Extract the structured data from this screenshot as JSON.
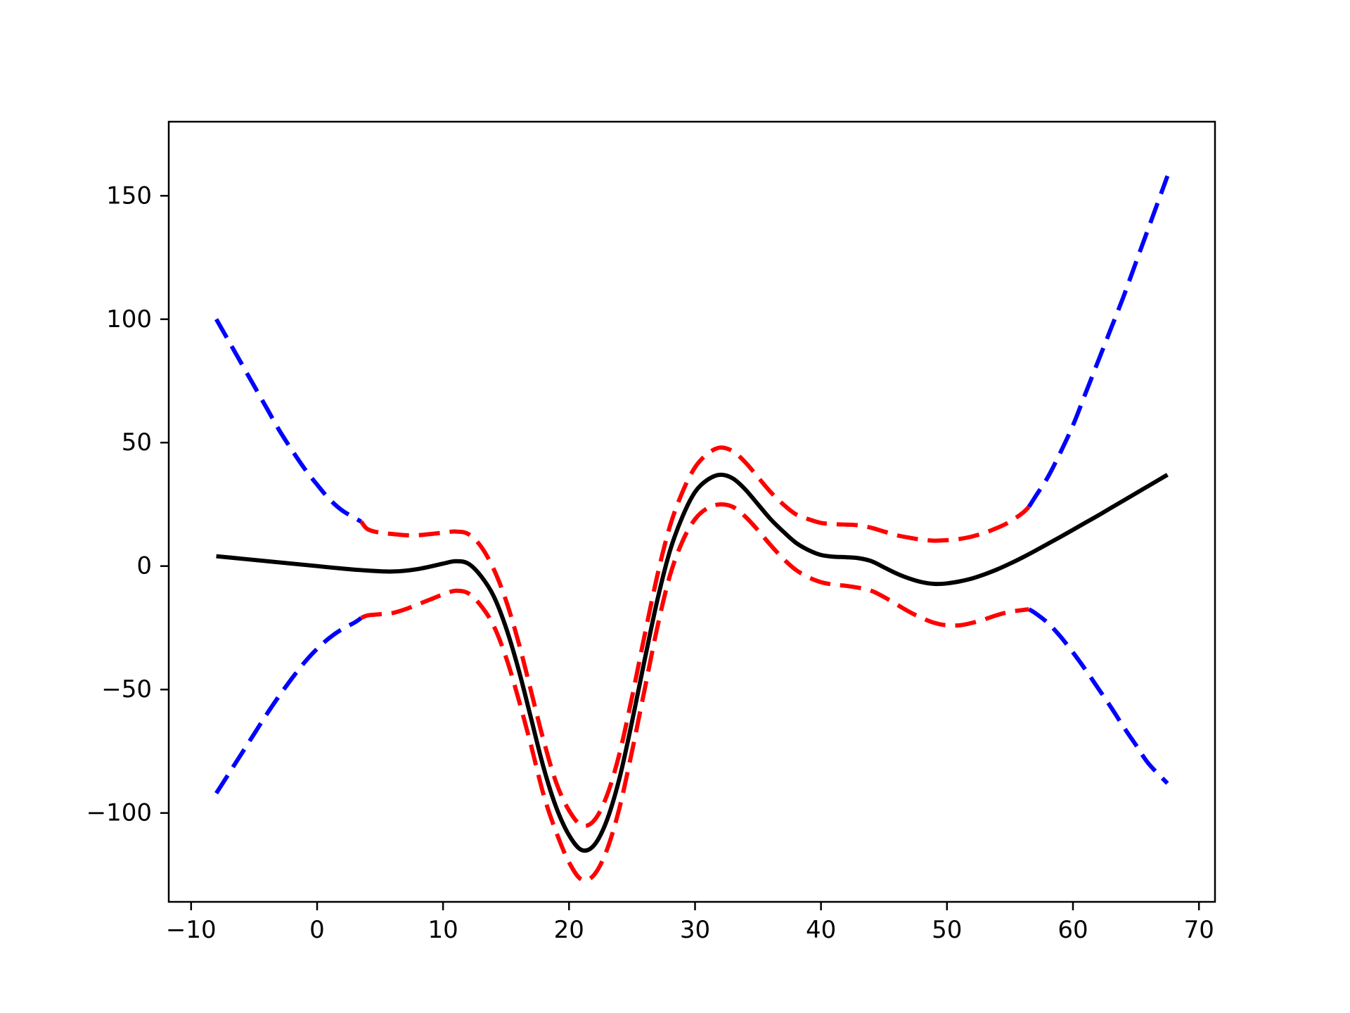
{
  "figure": {
    "background": "#ffffff",
    "axes_box_color": "#000000"
  },
  "chart_data": {
    "type": "line",
    "title": "",
    "xlabel": "",
    "ylabel": "",
    "grid": false,
    "legend": null,
    "xlim": [
      -11.775,
      71.275
    ],
    "ylim": [
      -136,
      180
    ],
    "xticks": {
      "values": [
        -10,
        0,
        10,
        20,
        30,
        40,
        50,
        60,
        70
      ],
      "labels": [
        "−10",
        "0",
        "10",
        "20",
        "30",
        "40",
        "50",
        "60",
        "70"
      ]
    },
    "yticks": {
      "values": [
        -100,
        -50,
        0,
        50,
        100,
        150
      ],
      "labels": [
        "−100",
        "−50",
        "0",
        "50",
        "100",
        "150"
      ]
    },
    "series": [
      {
        "name": "upper-confidence-band-extrapolation-left",
        "color": "#0000ff",
        "style": "dashed",
        "linewidth": 6,
        "points": [
          [
            -8,
            100
          ],
          [
            -7,
            91
          ],
          [
            -6,
            82
          ],
          [
            -5,
            73
          ],
          [
            -4,
            64
          ],
          [
            -3,
            55
          ],
          [
            -2,
            47
          ],
          [
            -1,
            39.5
          ],
          [
            0,
            33
          ],
          [
            1,
            27
          ],
          [
            2,
            22.5
          ],
          [
            3,
            19.5
          ],
          [
            3.5,
            18
          ]
        ]
      },
      {
        "name": "lower-confidence-band-extrapolation-left",
        "color": "#0000ff",
        "style": "dashed",
        "linewidth": 6,
        "points": [
          [
            -8,
            -92
          ],
          [
            -7,
            -84
          ],
          [
            -6,
            -76
          ],
          [
            -5,
            -68
          ],
          [
            -4,
            -60
          ],
          [
            -3,
            -52.5
          ],
          [
            -2,
            -45.5
          ],
          [
            -1,
            -39
          ],
          [
            0,
            -33.5
          ],
          [
            1,
            -29
          ],
          [
            2,
            -25.5
          ],
          [
            3,
            -22.8
          ],
          [
            3.5,
            -21
          ]
        ]
      },
      {
        "name": "upper-confidence-band-extrapolation-right",
        "color": "#0000ff",
        "style": "dashed",
        "linewidth": 6,
        "points": [
          [
            56.5,
            24
          ],
          [
            57,
            28
          ],
          [
            58,
            36
          ],
          [
            59,
            46
          ],
          [
            60,
            57
          ],
          [
            61,
            70
          ],
          [
            62,
            83
          ],
          [
            63,
            96
          ],
          [
            64,
            109
          ],
          [
            65,
            123
          ],
          [
            66,
            137
          ],
          [
            67.5,
            158
          ]
        ]
      },
      {
        "name": "lower-confidence-band-extrapolation-right",
        "color": "#0000ff",
        "style": "dashed",
        "linewidth": 6,
        "points": [
          [
            56.5,
            -17.5
          ],
          [
            57,
            -19
          ],
          [
            58,
            -23
          ],
          [
            59,
            -28.5
          ],
          [
            60,
            -35
          ],
          [
            61,
            -42
          ],
          [
            62,
            -49.5
          ],
          [
            63,
            -57
          ],
          [
            64,
            -65
          ],
          [
            65,
            -72.5
          ],
          [
            66,
            -80
          ],
          [
            67.5,
            -88
          ]
        ]
      },
      {
        "name": "upper-confidence-band-interpolation",
        "color": "#ff0000",
        "style": "dashed",
        "linewidth": 6,
        "points": [
          [
            3.5,
            18
          ],
          [
            4,
            15
          ],
          [
            5,
            13.5
          ],
          [
            6,
            13
          ],
          [
            7,
            12.5
          ],
          [
            8,
            12.5
          ],
          [
            9,
            13
          ],
          [
            10,
            13.5
          ],
          [
            11,
            14
          ],
          [
            12,
            13
          ],
          [
            13,
            8
          ],
          [
            14,
            -1
          ],
          [
            15,
            -14
          ],
          [
            16,
            -31
          ],
          [
            17,
            -51
          ],
          [
            18,
            -71
          ],
          [
            19,
            -88
          ],
          [
            20,
            -99
          ],
          [
            21,
            -105
          ],
          [
            22,
            -103
          ],
          [
            23,
            -93
          ],
          [
            24,
            -76
          ],
          [
            25,
            -53
          ],
          [
            26,
            -28
          ],
          [
            27,
            -4
          ],
          [
            28,
            16
          ],
          [
            29,
            30
          ],
          [
            30,
            40
          ],
          [
            31,
            45.5
          ],
          [
            32,
            48
          ],
          [
            33,
            46.5
          ],
          [
            34,
            42
          ],
          [
            35,
            36
          ],
          [
            36,
            30
          ],
          [
            37,
            25
          ],
          [
            38,
            21
          ],
          [
            39,
            19
          ],
          [
            40,
            17.5
          ],
          [
            41,
            17
          ],
          [
            42,
            16.8
          ],
          [
            43,
            16.5
          ],
          [
            44,
            15.5
          ],
          [
            45,
            14
          ],
          [
            46,
            12.5
          ],
          [
            47,
            11.5
          ],
          [
            48,
            10.7
          ],
          [
            49,
            10.3
          ],
          [
            50,
            10.5
          ],
          [
            51,
            11
          ],
          [
            52,
            12
          ],
          [
            53,
            13.5
          ],
          [
            54,
            15.5
          ],
          [
            55,
            18
          ],
          [
            56,
            21.5
          ],
          [
            56.5,
            24
          ]
        ]
      },
      {
        "name": "lower-confidence-band-interpolation",
        "color": "#ff0000",
        "style": "dashed",
        "linewidth": 6,
        "points": [
          [
            3.5,
            -21
          ],
          [
            4,
            -20
          ],
          [
            5,
            -19.5
          ],
          [
            6,
            -19
          ],
          [
            7,
            -17.5
          ],
          [
            8,
            -15.5
          ],
          [
            9,
            -13.5
          ],
          [
            10,
            -11.5
          ],
          [
            11,
            -10
          ],
          [
            12,
            -11
          ],
          [
            13,
            -16
          ],
          [
            14,
            -24
          ],
          [
            15,
            -37
          ],
          [
            16,
            -54
          ],
          [
            17,
            -73
          ],
          [
            18,
            -93
          ],
          [
            19,
            -108
          ],
          [
            20,
            -120
          ],
          [
            21,
            -127
          ],
          [
            22,
            -125
          ],
          [
            23,
            -115
          ],
          [
            24,
            -98
          ],
          [
            25,
            -75
          ],
          [
            26,
            -50
          ],
          [
            27,
            -25
          ],
          [
            28,
            -4
          ],
          [
            29,
            10
          ],
          [
            30,
            19
          ],
          [
            31,
            23.5
          ],
          [
            32,
            25
          ],
          [
            33,
            24
          ],
          [
            34,
            20
          ],
          [
            35,
            14.5
          ],
          [
            36,
            8.5
          ],
          [
            37,
            3
          ],
          [
            38,
            -1.5
          ],
          [
            39,
            -4.5
          ],
          [
            40,
            -6.5
          ],
          [
            41,
            -7.5
          ],
          [
            42,
            -8
          ],
          [
            43,
            -8.8
          ],
          [
            44,
            -10
          ],
          [
            45,
            -12.5
          ],
          [
            46,
            -15.5
          ],
          [
            47,
            -18.5
          ],
          [
            48,
            -21
          ],
          [
            49,
            -23
          ],
          [
            50,
            -24
          ],
          [
            51,
            -24
          ],
          [
            52,
            -23
          ],
          [
            53,
            -21.5
          ],
          [
            54,
            -19.8
          ],
          [
            55,
            -18.5
          ],
          [
            56,
            -17.8
          ],
          [
            56.5,
            -17.5
          ]
        ]
      },
      {
        "name": "mean-prediction",
        "color": "#000000",
        "style": "solid",
        "linewidth": 6,
        "points": [
          [
            -8,
            4
          ],
          [
            -6,
            3
          ],
          [
            -4,
            2
          ],
          [
            -2,
            1
          ],
          [
            0,
            0
          ],
          [
            2,
            -1
          ],
          [
            4,
            -1.8
          ],
          [
            6,
            -2.2
          ],
          [
            8,
            -1.2
          ],
          [
            10,
            1
          ],
          [
            11,
            2
          ],
          [
            12,
            1
          ],
          [
            13,
            -4
          ],
          [
            14,
            -12
          ],
          [
            15,
            -25
          ],
          [
            16,
            -42
          ],
          [
            17,
            -62
          ],
          [
            18,
            -82
          ],
          [
            19,
            -98
          ],
          [
            20,
            -109
          ],
          [
            21,
            -115
          ],
          [
            22,
            -113
          ],
          [
            23,
            -103
          ],
          [
            24,
            -86
          ],
          [
            25,
            -63
          ],
          [
            26,
            -38
          ],
          [
            27,
            -14
          ],
          [
            28,
            6
          ],
          [
            29,
            20
          ],
          [
            30,
            30
          ],
          [
            31,
            35
          ],
          [
            32,
            37
          ],
          [
            33,
            35.5
          ],
          [
            34,
            31
          ],
          [
            35,
            25
          ],
          [
            36,
            19
          ],
          [
            37,
            14
          ],
          [
            38,
            9.5
          ],
          [
            39,
            6.5
          ],
          [
            40,
            4.5
          ],
          [
            41,
            3.8
          ],
          [
            42,
            3.6
          ],
          [
            43,
            3.2
          ],
          [
            44,
            2
          ],
          [
            45,
            -0.5
          ],
          [
            46,
            -3
          ],
          [
            47,
            -5
          ],
          [
            48,
            -6.5
          ],
          [
            49,
            -7.2
          ],
          [
            50,
            -7
          ],
          [
            51,
            -6.2
          ],
          [
            52,
            -5
          ],
          [
            53,
            -3.3
          ],
          [
            54,
            -1.3
          ],
          [
            55,
            1
          ],
          [
            56,
            3.5
          ],
          [
            57,
            6.2
          ],
          [
            58,
            9
          ],
          [
            59,
            11.8
          ],
          [
            60,
            14.7
          ],
          [
            61,
            17.6
          ],
          [
            62,
            20.5
          ],
          [
            63,
            23.5
          ],
          [
            64,
            26.5
          ],
          [
            65,
            29.5
          ],
          [
            66,
            32.5
          ],
          [
            67.5,
            37
          ]
        ]
      }
    ]
  }
}
